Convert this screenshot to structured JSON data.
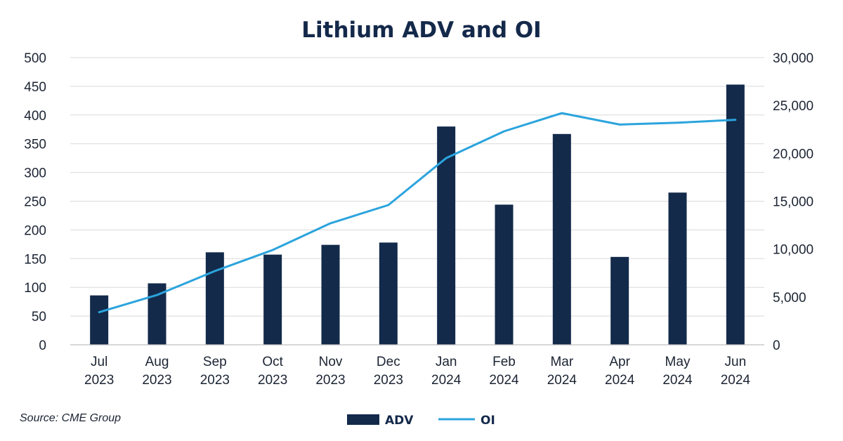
{
  "chart_data": {
    "type": "bar",
    "title": "Lithium ADV and OI",
    "categories": [
      [
        "Jul",
        "2023"
      ],
      [
        "Aug",
        "2023"
      ],
      [
        "Sep",
        "2023"
      ],
      [
        "Oct",
        "2023"
      ],
      [
        "Nov",
        "2023"
      ],
      [
        "Dec",
        "2023"
      ],
      [
        "Jan",
        "2024"
      ],
      [
        "Feb",
        "2024"
      ],
      [
        "Mar",
        "2024"
      ],
      [
        "Apr",
        "2024"
      ],
      [
        "May",
        "2024"
      ],
      [
        "Jun",
        "2024"
      ]
    ],
    "series": [
      {
        "name": "ADV",
        "type": "bar",
        "axis": "left",
        "color": "#132a4b",
        "values": [
          86,
          107,
          161,
          157,
          174,
          178,
          380,
          244,
          367,
          153,
          265,
          453
        ]
      },
      {
        "name": "OI",
        "type": "line",
        "axis": "right",
        "color": "#2ba4dd",
        "values": [
          3400,
          5200,
          7700,
          9900,
          12700,
          14600,
          19500,
          22300,
          24200,
          23000,
          23200,
          23500
        ]
      }
    ],
    "y_left": {
      "min": 0,
      "max": 500,
      "step": 50,
      "ticks": [
        "0",
        "50",
        "100",
        "150",
        "200",
        "250",
        "300",
        "350",
        "400",
        "450",
        "500"
      ]
    },
    "y_right": {
      "min": 0,
      "max": 30000,
      "step": 5000,
      "ticks": [
        "0",
        "5,000",
        "10,000",
        "15,000",
        "20,000",
        "25,000",
        "30,000"
      ]
    },
    "grid": true,
    "legend_position": "bottom-center",
    "source": "Source: CME Group"
  }
}
